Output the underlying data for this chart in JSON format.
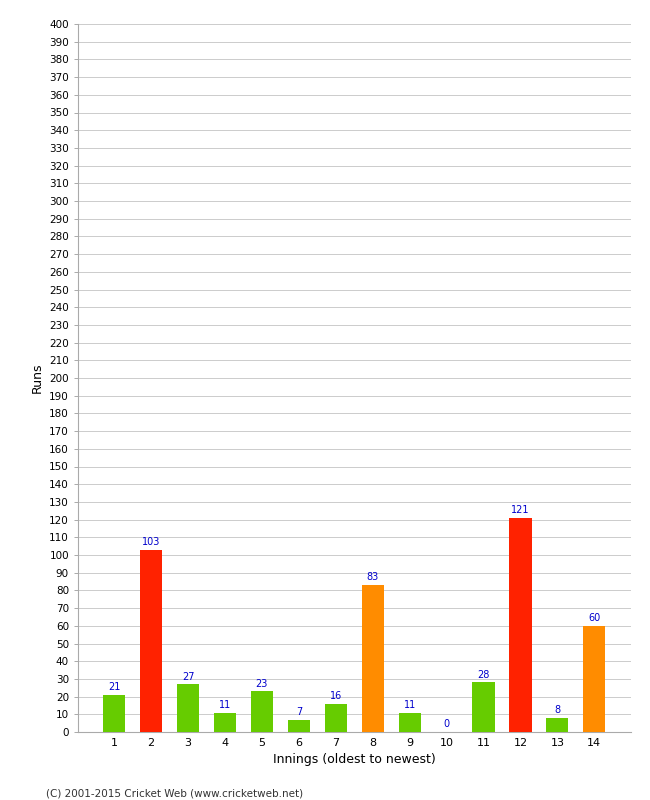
{
  "innings": [
    1,
    2,
    3,
    4,
    5,
    6,
    7,
    8,
    9,
    10,
    11,
    12,
    13,
    14
  ],
  "values": [
    21,
    103,
    27,
    11,
    23,
    7,
    16,
    83,
    11,
    0,
    28,
    121,
    8,
    60
  ],
  "colors": [
    "#66cc00",
    "#ff2200",
    "#66cc00",
    "#66cc00",
    "#66cc00",
    "#66cc00",
    "#66cc00",
    "#ff8c00",
    "#66cc00",
    "#66cc00",
    "#66cc00",
    "#ff2200",
    "#66cc00",
    "#ff8c00"
  ],
  "xlabel": "Innings (oldest to newest)",
  "ylabel": "Runs",
  "ylim": [
    0,
    400
  ],
  "ytick_step": 10,
  "label_color": "#0000cc",
  "label_fontsize": 7.0,
  "background_color": "#ffffff",
  "grid_color": "#cccccc",
  "footer": "(C) 2001-2015 Cricket Web (www.cricketweb.net)"
}
